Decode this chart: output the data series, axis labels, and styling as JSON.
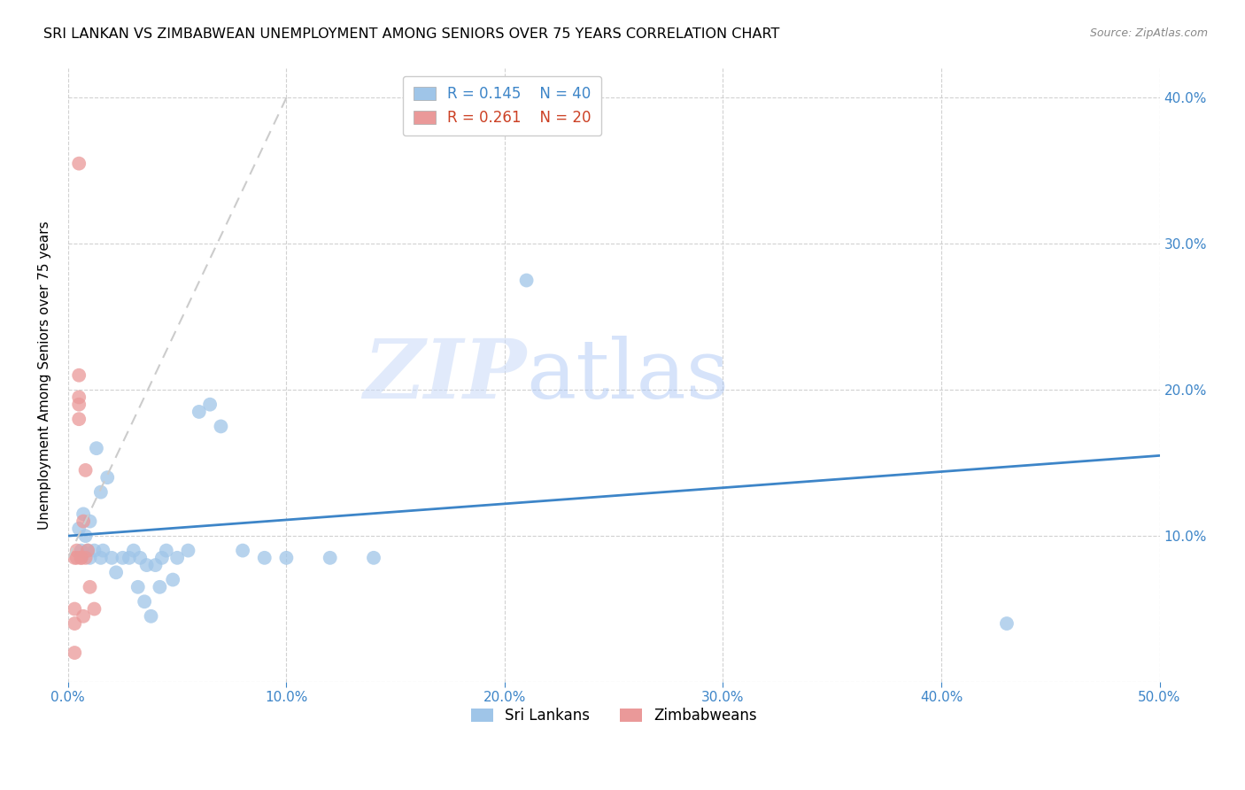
{
  "title": "SRI LANKAN VS ZIMBABWEAN UNEMPLOYMENT AMONG SENIORS OVER 75 YEARS CORRELATION CHART",
  "source": "Source: ZipAtlas.com",
  "ylabel": "Unemployment Among Seniors over 75 years",
  "xlim": [
    0.0,
    0.5
  ],
  "ylim": [
    0.0,
    0.42
  ],
  "xticks": [
    0.0,
    0.1,
    0.2,
    0.3,
    0.4,
    0.5
  ],
  "yticks": [
    0.0,
    0.1,
    0.2,
    0.3,
    0.4
  ],
  "xtick_labels": [
    "0.0%",
    "10.0%",
    "20.0%",
    "30.0%",
    "40.0%",
    "50.0%"
  ],
  "right_ytick_labels": [
    "10.0%",
    "20.0%",
    "30.0%",
    "40.0%"
  ],
  "sri_lankan_color": "#9fc5e8",
  "zimbabwean_color": "#ea9999",
  "sri_lankan_line_color": "#3d85c8",
  "zimbabwean_line_color": "#cc4125",
  "legend_r_sri": "R = 0.145",
  "legend_n_sri": "N = 40",
  "legend_r_zim": "R = 0.261",
  "legend_n_zim": "N = 20",
  "watermark_zip": "ZIP",
  "watermark_atlas": "atlas",
  "sri_lankans_x": [
    0.005,
    0.006,
    0.007,
    0.008,
    0.009,
    0.01,
    0.01,
    0.012,
    0.013,
    0.015,
    0.015,
    0.016,
    0.018,
    0.02,
    0.022,
    0.025,
    0.028,
    0.03,
    0.032,
    0.033,
    0.035,
    0.036,
    0.038,
    0.04,
    0.042,
    0.043,
    0.045,
    0.048,
    0.05,
    0.055,
    0.06,
    0.065,
    0.07,
    0.08,
    0.09,
    0.1,
    0.12,
    0.14,
    0.21,
    0.43
  ],
  "sri_lankans_y": [
    0.105,
    0.09,
    0.115,
    0.1,
    0.09,
    0.085,
    0.11,
    0.09,
    0.16,
    0.085,
    0.13,
    0.09,
    0.14,
    0.085,
    0.075,
    0.085,
    0.085,
    0.09,
    0.065,
    0.085,
    0.055,
    0.08,
    0.045,
    0.08,
    0.065,
    0.085,
    0.09,
    0.07,
    0.085,
    0.09,
    0.185,
    0.19,
    0.175,
    0.09,
    0.085,
    0.085,
    0.085,
    0.085,
    0.275,
    0.04
  ],
  "zimbabweans_x": [
    0.003,
    0.003,
    0.003,
    0.003,
    0.004,
    0.004,
    0.005,
    0.005,
    0.005,
    0.005,
    0.005,
    0.006,
    0.006,
    0.007,
    0.007,
    0.008,
    0.008,
    0.009,
    0.01,
    0.012
  ],
  "zimbabweans_y": [
    0.02,
    0.04,
    0.05,
    0.085,
    0.085,
    0.09,
    0.18,
    0.19,
    0.195,
    0.21,
    0.355,
    0.085,
    0.085,
    0.045,
    0.11,
    0.085,
    0.145,
    0.09,
    0.065,
    0.05
  ],
  "sri_lankan_trend_x": [
    0.0,
    0.5
  ],
  "sri_lankan_trend_y": [
    0.1,
    0.155
  ],
  "zimbabwean_trend_x": [
    0.0,
    0.1
  ],
  "zimbabwean_trend_y": [
    0.085,
    0.4
  ]
}
